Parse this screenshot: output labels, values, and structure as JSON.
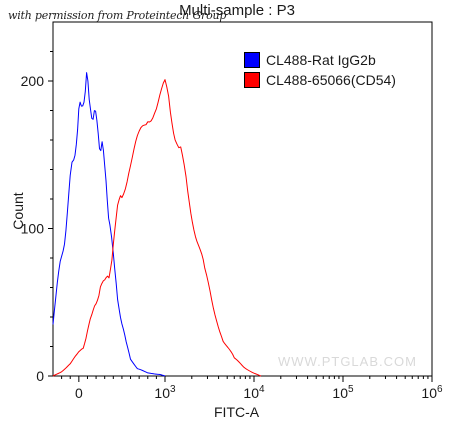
{
  "header": {
    "title": "Multi-sample : P3",
    "permission_note": "with permission from Proteintech Group",
    "watermark": "WWW.PTGLAB.COM"
  },
  "chart_data": {
    "type": "line",
    "title": "Multi-sample : P3",
    "xlabel": "FITC-A",
    "ylabel": "Count",
    "x_scale": "log",
    "xlim": [
      -300,
      1000000
    ],
    "ylim": [
      0,
      240
    ],
    "y_ticks": [
      0,
      100,
      200
    ],
    "x_ticks": [
      {
        "value": 0,
        "label": "0"
      },
      {
        "value": 1000,
        "base": "10",
        "exp": "3"
      },
      {
        "value": 10000,
        "base": "10",
        "exp": "4"
      },
      {
        "value": 100000,
        "base": "10",
        "exp": "5"
      },
      {
        "value": 1000000,
        "base": "10",
        "exp": "6"
      }
    ],
    "legend_position": "top-right",
    "series": [
      {
        "name": "CL488-Rat IgG2b",
        "color": "#0000ff",
        "x": [
          -300,
          -250,
          -200,
          -150,
          -100,
          -60,
          -30,
          0,
          30,
          60,
          90,
          120,
          150,
          180,
          210,
          240,
          270,
          300,
          330,
          360,
          400,
          450,
          500,
          550,
          600,
          680,
          800,
          950,
          1000
        ],
        "y": [
          35,
          60,
          85,
          100,
          130,
          150,
          160,
          175,
          185,
          190,
          200,
          188,
          180,
          175,
          172,
          160,
          155,
          140,
          125,
          100,
          80,
          55,
          35,
          22,
          12,
          5,
          2,
          1,
          0
        ]
      },
      {
        "name": "CL488-65066(CD54)",
        "color": "#ff0000",
        "x": [
          -300,
          -200,
          -100,
          0,
          50,
          100,
          150,
          200,
          250,
          300,
          350,
          400,
          450,
          500,
          600,
          700,
          800,
          900,
          1000,
          1150,
          1300,
          1500,
          1800,
          2200,
          2800,
          3500,
          4500,
          6000,
          8000,
          10000,
          12000
        ],
        "y": [
          0,
          3,
          8,
          16,
          20,
          30,
          40,
          52,
          60,
          62,
          70,
          90,
          110,
          125,
          145,
          160,
          175,
          185,
          195,
          180,
          165,
          150,
          125,
          100,
          70,
          45,
          25,
          12,
          5,
          2,
          0
        ]
      }
    ]
  }
}
